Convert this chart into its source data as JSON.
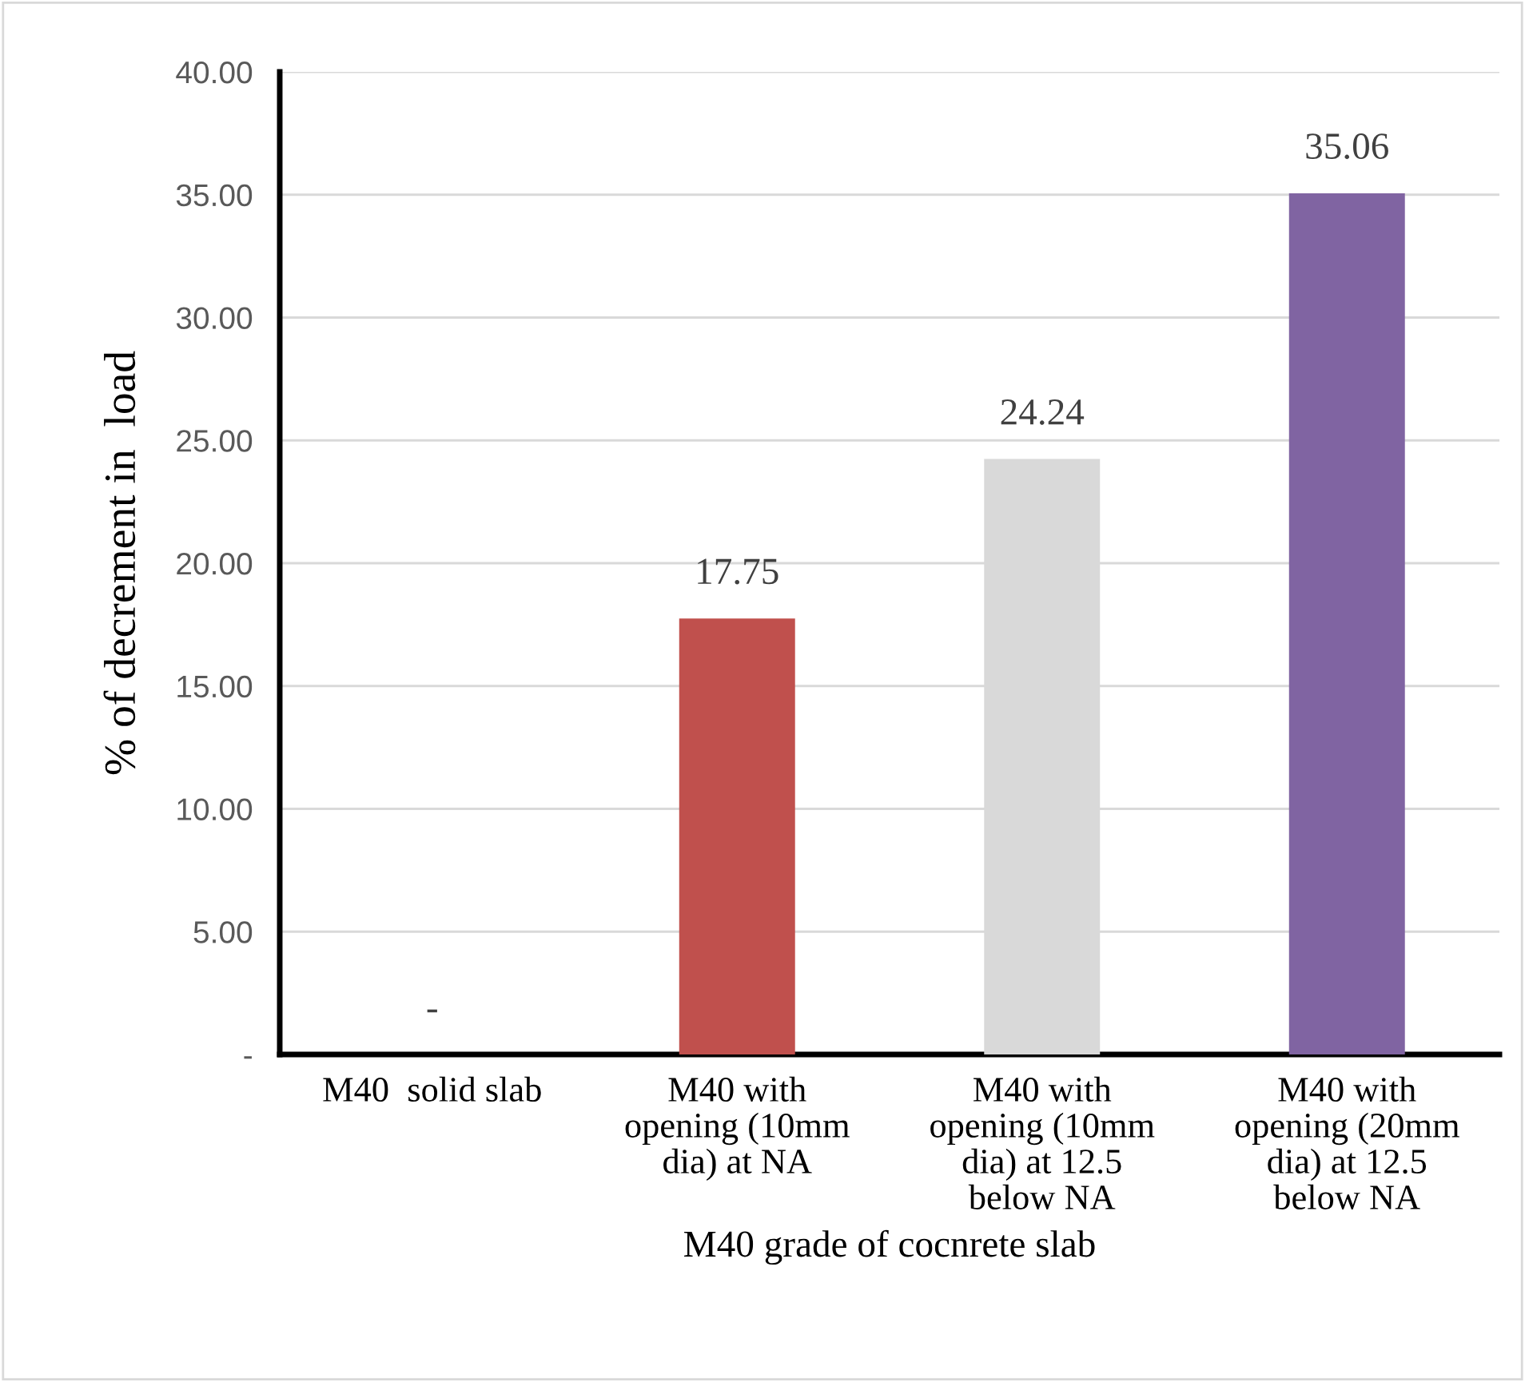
{
  "chart_data": {
    "type": "bar",
    "xlabel": "M40 grade of cocnrete slab",
    "ylabel": "% of decrement in  load",
    "categories": [
      "M40  solid slab",
      "M40 with\nopening (10mm\ndia) at NA",
      "M40 with\nopening (10mm\ndia) at 12.5\nbelow NA",
      "M40 with\nopening (20mm\ndia) at 12.5\nbelow NA"
    ],
    "values": [
      0,
      17.75,
      24.24,
      35.06
    ],
    "colors": [
      "#4f81bd",
      "#c0504d",
      "#d9d9d9",
      "#8064a2"
    ],
    "value_labels": [
      "-",
      "17.75",
      "24.24",
      "35.06"
    ],
    "ylim": [
      0,
      40
    ],
    "yticks": [
      {
        "value": 0,
        "label": "-"
      },
      {
        "value": 5,
        "label": "5.00"
      },
      {
        "value": 10,
        "label": "10.00"
      },
      {
        "value": 15,
        "label": "15.00"
      },
      {
        "value": 20,
        "label": "20.00"
      },
      {
        "value": 25,
        "label": "25.00"
      },
      {
        "value": 30,
        "label": "30.00"
      },
      {
        "value": 35,
        "label": "35.00"
      },
      {
        "value": 40,
        "label": "40.00"
      }
    ],
    "grid": "y",
    "legend": false
  }
}
